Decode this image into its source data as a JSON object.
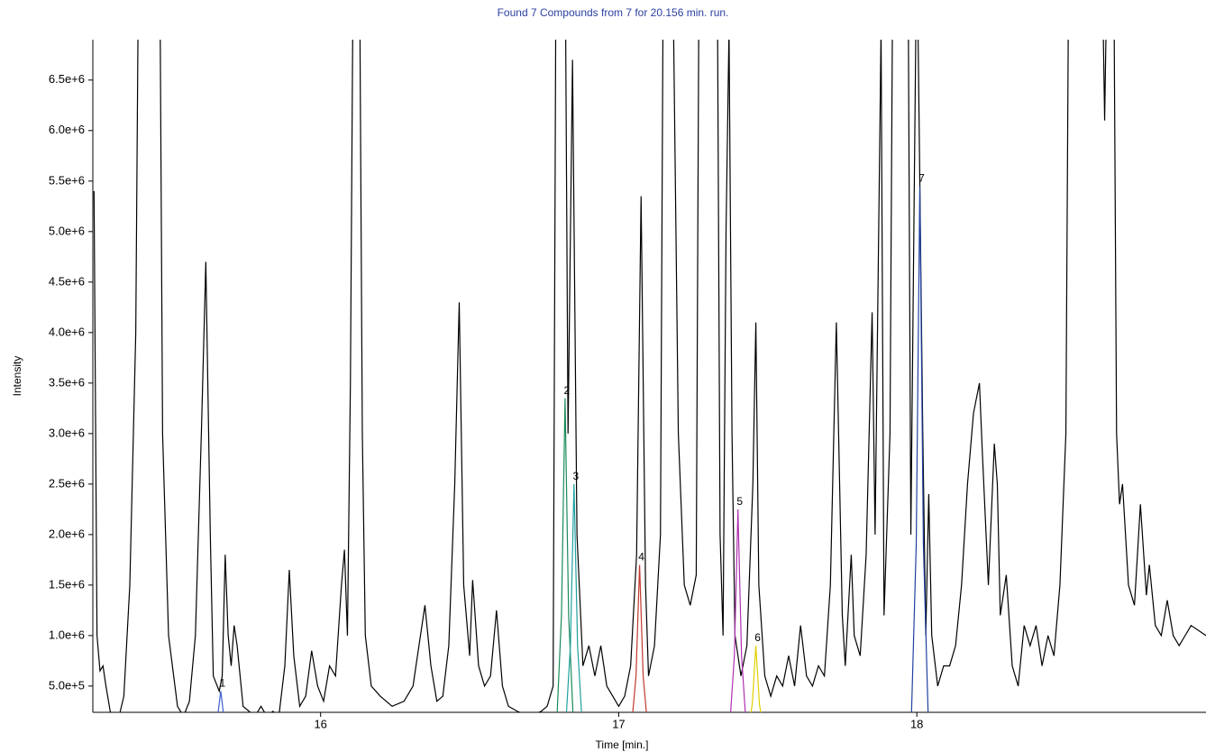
{
  "chart_data": {
    "type": "line",
    "title": "Found 7 Compounds from 7 for 20.156 min. run.",
    "xlabel": "Time [min.]",
    "ylabel": "Intensity",
    "xlim": [
      15.236,
      18.97
    ],
    "ylim": [
      240000,
      6900000
    ],
    "xticks": [
      16,
      17,
      18
    ],
    "yticks": [
      {
        "value": 500000,
        "label": "5.0e+5"
      },
      {
        "value": 1000000,
        "label": "1.0e+6"
      },
      {
        "value": 1500000,
        "label": "1.5e+6"
      },
      {
        "value": 2000000,
        "label": "2.0e+6"
      },
      {
        "value": 2500000,
        "label": "2.5e+6"
      },
      {
        "value": 3000000,
        "label": "3.0e+6"
      },
      {
        "value": 3500000,
        "label": "3.5e+6"
      },
      {
        "value": 4000000,
        "label": "4.0e+6"
      },
      {
        "value": 4500000,
        "label": "4.5e+6"
      },
      {
        "value": 5000000,
        "label": "5.0e+6"
      },
      {
        "value": 5500000,
        "label": "5.5e+6"
      },
      {
        "value": 6000000,
        "label": "6.0e+6"
      },
      {
        "value": 6500000,
        "label": "6.5e+6"
      }
    ],
    "series": [
      {
        "color": "#000000",
        "x": [
          15.24,
          15.25,
          15.26,
          15.27,
          15.28,
          15.3,
          15.32,
          15.34,
          15.36,
          15.38,
          15.39,
          15.46,
          15.47,
          15.49,
          15.52,
          15.54,
          15.56,
          15.58,
          15.6,
          15.615,
          15.63,
          15.64,
          15.66,
          15.67,
          15.68,
          15.69,
          15.7,
          15.71,
          15.72,
          15.74,
          15.76,
          15.78,
          15.8,
          15.82,
          15.84,
          15.86,
          15.88,
          15.895,
          15.91,
          15.93,
          15.95,
          15.97,
          15.99,
          16.01,
          16.03,
          16.05,
          16.07,
          16.08,
          16.09,
          16.1,
          16.11,
          16.13,
          16.14,
          16.15,
          16.17,
          16.2,
          16.24,
          16.28,
          16.31,
          16.33,
          16.35,
          16.37,
          16.39,
          16.41,
          16.43,
          16.45,
          16.465,
          16.48,
          16.5,
          16.51,
          16.53,
          16.55,
          16.57,
          16.59,
          16.61,
          16.63,
          16.66,
          16.7,
          16.74,
          16.76,
          16.78,
          16.79,
          16.82,
          16.83,
          16.845,
          16.86,
          16.88,
          16.9,
          16.92,
          16.94,
          16.96,
          16.98,
          17.0,
          17.02,
          17.04,
          17.06,
          17.075,
          17.09,
          17.1,
          17.12,
          17.14,
          17.15,
          17.18,
          17.2,
          17.22,
          17.24,
          17.26,
          17.27,
          17.33,
          17.34,
          17.35,
          17.36,
          17.37,
          17.38,
          17.39,
          17.41,
          17.43,
          17.45,
          17.46,
          17.47,
          17.49,
          17.51,
          17.53,
          17.55,
          17.57,
          17.59,
          17.61,
          17.63,
          17.65,
          17.67,
          17.69,
          17.71,
          17.73,
          17.75,
          17.76,
          17.78,
          17.79,
          17.81,
          17.83,
          17.85,
          17.86,
          17.88,
          17.89,
          17.91,
          17.92,
          17.97,
          17.98,
          18.0,
          18.02,
          18.03,
          18.04,
          18.05,
          18.07,
          18.09,
          18.11,
          18.13,
          18.15,
          18.17,
          18.19,
          18.21,
          18.22,
          18.24,
          18.26,
          18.27,
          18.28,
          18.3,
          18.32,
          18.34,
          18.36,
          18.38,
          18.4,
          18.42,
          18.44,
          18.46,
          18.48,
          18.5,
          18.51,
          18.62,
          18.63,
          18.64,
          18.66,
          18.67,
          18.68,
          18.69,
          18.71,
          18.73,
          18.75,
          18.77,
          18.78,
          18.8,
          18.82,
          18.84,
          18.86,
          18.88,
          18.9,
          18.92,
          18.97
        ],
        "values": [
          5400000.0,
          1000000.0,
          650000.0,
          700000.0,
          500000.0,
          150000.0,
          150000.0,
          400000.0,
          1500000.0,
          4000000.0,
          8000000.0,
          8000000.0,
          3000000.0,
          1000000.0,
          300000.0,
          200000.0,
          350000.0,
          1000000.0,
          3000000.0,
          4700000.0,
          2000000.0,
          600000.0,
          450000.0,
          600000.0,
          1800000.0,
          1000000.0,
          700000.0,
          1100000.0,
          900000.0,
          300000.0,
          250000.0,
          200000.0,
          300000.0,
          200000.0,
          250000.0,
          200000.0,
          700000.0,
          1650000.0,
          800000.0,
          300000.0,
          400000.0,
          850000.0,
          500000.0,
          350000.0,
          700000.0,
          600000.0,
          1500000.0,
          1850000.0,
          1000000.0,
          3500000.0,
          8000000.0,
          8000000.0,
          3000000.0,
          1000000.0,
          500000.0,
          400000.0,
          300000.0,
          350000.0,
          500000.0,
          900000.0,
          1300000.0,
          700000.0,
          350000.0,
          400000.0,
          900000.0,
          2500000.0,
          4300000.0,
          1500000.0,
          800000.0,
          1550000.0,
          700000.0,
          500000.0,
          600000.0,
          1250000.0,
          500000.0,
          300000.0,
          250000.0,
          200000.0,
          250000.0,
          300000.0,
          500000.0,
          8000000.0,
          8000000.0,
          3000000.0,
          6700000.0,
          2000000.0,
          700000.0,
          900000.0,
          600000.0,
          900000.0,
          500000.0,
          400000.0,
          300000.0,
          400000.0,
          700000.0,
          1800000.0,
          5350000.0,
          1500000.0,
          600000.0,
          900000.0,
          2000000.0,
          8000000.0,
          8000000.0,
          3000000.0,
          1500000.0,
          1300000.0,
          1600000.0,
          8000000.0,
          8000000.0,
          2000000.0,
          1000000.0,
          5000000.0,
          7000000.0,
          3000000.0,
          1000000.0,
          600000.0,
          900000.0,
          2500000.0,
          4100000.0,
          1500000.0,
          600000.0,
          400000.0,
          600000.0,
          500000.0,
          800000.0,
          500000.0,
          1100000.0,
          600000.0,
          500000.0,
          700000.0,
          600000.0,
          1500000.0,
          4100000.0,
          1200000.0,
          700000.0,
          1800000.0,
          1000000.0,
          800000.0,
          1800000.0,
          4200000.0,
          2000000.0,
          7000000.0,
          1200000.0,
          3000000.0,
          8000000.0,
          8000000.0,
          2000000.0,
          8000000.0,
          3000000.0,
          1000000.0,
          2400000.0,
          1000000.0,
          500000.0,
          700000.0,
          700000.0,
          900000.0,
          1500000.0,
          2500000.0,
          3200000.0,
          3500000.0,
          2800000.0,
          1500000.0,
          2900000.0,
          2500000.0,
          1200000.0,
          1600000.0,
          700000.0,
          500000.0,
          1100000.0,
          900000.0,
          1100000.0,
          700000.0,
          1000000.0,
          800000.0,
          1500000.0,
          3000000.0,
          8000000.0,
          8000000.0,
          6100000.0,
          8000000.0,
          8000000.0,
          3000000.0,
          2300000.0,
          2500000.0,
          1500000.0,
          1300000.0,
          2300000.0,
          1400000.0,
          1700000.0,
          1100000.0,
          1000000.0,
          1350000.0,
          1000000.0,
          900000.0,
          1000000.0,
          1100000.0,
          1000000.0
        ]
      },
      {
        "name": "1",
        "color": "#3a5fcd",
        "x": [
          15.635,
          15.653,
          15.665,
          15.677,
          15.695
        ],
        "values": [
          0,
          160000.0,
          450000.0,
          160000.0,
          0
        ]
      },
      {
        "name": "2",
        "color": "#1a8a5a",
        "x": [
          16.79,
          16.808,
          16.82,
          16.832,
          16.85
        ],
        "values": [
          0,
          1200000.0,
          3350000.0,
          1200000.0,
          0
        ]
      },
      {
        "name": "3",
        "color": "#20a0a0",
        "x": [
          16.82,
          16.838,
          16.85,
          16.862,
          16.88
        ],
        "values": [
          0,
          900000.0,
          2500000.0,
          900000.0,
          0
        ]
      },
      {
        "name": "4",
        "color": "#c0392b",
        "x": [
          17.04,
          17.058,
          17.07,
          17.082,
          17.1
        ],
        "values": [
          0,
          600000.0,
          1700000.0,
          600000.0,
          0
        ]
      },
      {
        "name": "5",
        "color": "#b030b0",
        "x": [
          17.37,
          17.388,
          17.4,
          17.412,
          17.43
        ],
        "values": [
          0,
          800000.0,
          2250000.0,
          800000.0,
          0
        ]
      },
      {
        "name": "6",
        "color": "#e0d000",
        "x": [
          17.43,
          17.448,
          17.46,
          17.472,
          17.49
        ],
        "values": [
          0,
          320000.0,
          900000.0,
          320000.0,
          0
        ]
      },
      {
        "name": "7",
        "color": "#2040a0",
        "x": [
          17.98,
          17.998,
          18.01,
          18.022,
          18.04
        ],
        "values": [
          0,
          1900000.0,
          5450000.0,
          1900000.0,
          0
        ]
      }
    ]
  }
}
